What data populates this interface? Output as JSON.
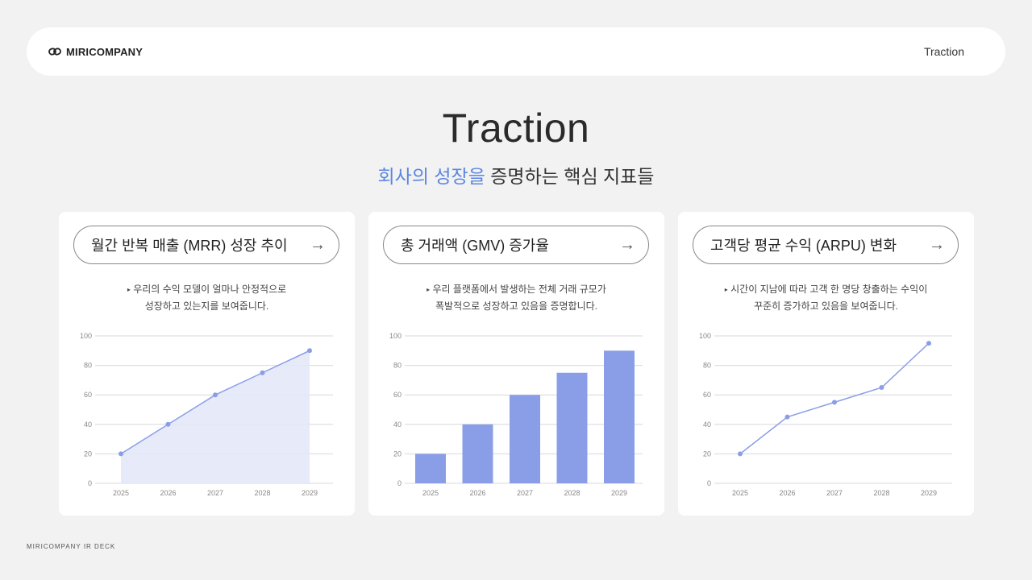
{
  "header": {
    "brand": "MIRICOMPANY",
    "nav": "Traction"
  },
  "page": {
    "title": "Traction",
    "subtitle_highlight": "회사의 성장을",
    "subtitle_rest": " 증명하는 핵심 지표들"
  },
  "cards": [
    {
      "title": "월간 반복 매출 (MRR) 성장 추이",
      "desc1": "우리의 수익 모델이 얼마나 안정적으로",
      "desc2": "성장하고 있는지를 보여줍니다."
    },
    {
      "title": "총 거래액 (GMV) 증가율",
      "desc1": "우리 플랫폼에서 발생하는 전체 거래 규모가",
      "desc2": "폭발적으로 성장하고 있음을 증명합니다."
    },
    {
      "title": "고객당 평균 수익 (ARPU) 변화",
      "desc1": "시간이 지남에 따라 고객 한 명당 창출하는 수익이",
      "desc2": "꾸준히 증가하고 있음을 보여줍니다."
    }
  ],
  "footer": "MIRICOMPANY IR DECK",
  "colors": {
    "accent": "#5b86e0",
    "series": "#8a9ee8",
    "area": "#e3e8f8",
    "grid": "#d8d8de"
  },
  "chart_data": [
    {
      "type": "area",
      "categories": [
        "2025",
        "2026",
        "2027",
        "2028",
        "2029"
      ],
      "values": [
        20,
        40,
        60,
        75,
        90
      ],
      "ylim": [
        0,
        100
      ],
      "yticks": [
        0,
        20,
        40,
        60,
        80,
        100
      ],
      "grid": true
    },
    {
      "type": "bar",
      "categories": [
        "2025",
        "2026",
        "2027",
        "2028",
        "2029"
      ],
      "values": [
        20,
        40,
        60,
        75,
        90
      ],
      "ylim": [
        0,
        100
      ],
      "yticks": [
        0,
        20,
        40,
        60,
        80,
        100
      ],
      "grid": true
    },
    {
      "type": "line",
      "categories": [
        "2025",
        "2026",
        "2027",
        "2028",
        "2029"
      ],
      "values": [
        20,
        45,
        55,
        65,
        95
      ],
      "ylim": [
        0,
        100
      ],
      "yticks": [
        0,
        20,
        40,
        60,
        80,
        100
      ],
      "grid": true
    }
  ]
}
